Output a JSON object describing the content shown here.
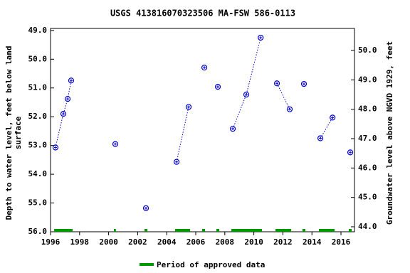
{
  "chart_data": {
    "type": "scatter",
    "title": "USGS 413816070323506 MA-FSW  586-0113",
    "ylabel": [
      "Depth to water level, feet below land",
      "surface"
    ],
    "y2label": "Groundwater level above NGVD 1929, feet",
    "series": [
      {
        "color": "#0000cc",
        "x": [
          1996.34,
          1996.88,
          1997.18,
          1997.42,
          null,
          2000.46,
          null,
          2002.57,
          null,
          2004.68,
          2005.51,
          null,
          2006.59,
          null,
          2007.52,
          null,
          2008.55,
          2009.48,
          2010.47,
          null,
          2011.59,
          2012.47,
          null,
          2013.45,
          null,
          2014.58,
          2015.42,
          null,
          2016.64
        ],
        "values": [
          53.07,
          51.9,
          51.38,
          50.74,
          null,
          52.95,
          null,
          55.18,
          null,
          53.57,
          51.66,
          null,
          50.29,
          null,
          50.96,
          null,
          52.42,
          51.23,
          49.25,
          null,
          50.84,
          51.74,
          null,
          50.86,
          null,
          52.75,
          52.03,
          null,
          53.24
        ]
      }
    ],
    "approved_periods": [
      [
        1996.25,
        1997.52
      ],
      [
        2000.36,
        2000.5
      ],
      [
        2002.47,
        2002.67
      ],
      [
        2004.58,
        2005.61
      ],
      [
        2006.44,
        2006.64
      ],
      [
        2007.42,
        2007.62
      ],
      [
        2008.45,
        2010.56
      ],
      [
        2011.49,
        2012.57
      ],
      [
        2013.35,
        2013.55
      ],
      [
        2014.48,
        2015.56
      ],
      [
        2016.54,
        2016.74
      ]
    ],
    "approved_color": "#009900",
    "legend": "Period of approved data",
    "xlim": [
      1996,
      2016.93
    ],
    "xticks": [
      1996,
      1998,
      2000,
      2002,
      2004,
      2006,
      2008,
      2010,
      2012,
      2014,
      2016
    ],
    "ylim": [
      48.93,
      56.0
    ],
    "yticks": [
      {
        "value": 49,
        "label": "49.0"
      },
      {
        "value": 50,
        "label": "50.0"
      },
      {
        "value": 51,
        "label": "51.0"
      },
      {
        "value": 52,
        "label": "52.0"
      },
      {
        "value": 53,
        "label": "53.0"
      },
      {
        "value": 54,
        "label": "54.0"
      },
      {
        "value": 55,
        "label": "55.0"
      },
      {
        "value": 56,
        "label": "56.0"
      }
    ],
    "y2lim": [
      43.83,
      50.75
    ],
    "y2ticks": [
      {
        "value": 44,
        "label": "44.0"
      },
      {
        "value": 45,
        "label": "45.0"
      },
      {
        "value": 46,
        "label": "46.0"
      },
      {
        "value": 47,
        "label": "47.0"
      },
      {
        "value": 48,
        "label": "48.0"
      },
      {
        "value": 49,
        "label": "49.0"
      },
      {
        "value": 50,
        "label": "50.0"
      }
    ]
  }
}
